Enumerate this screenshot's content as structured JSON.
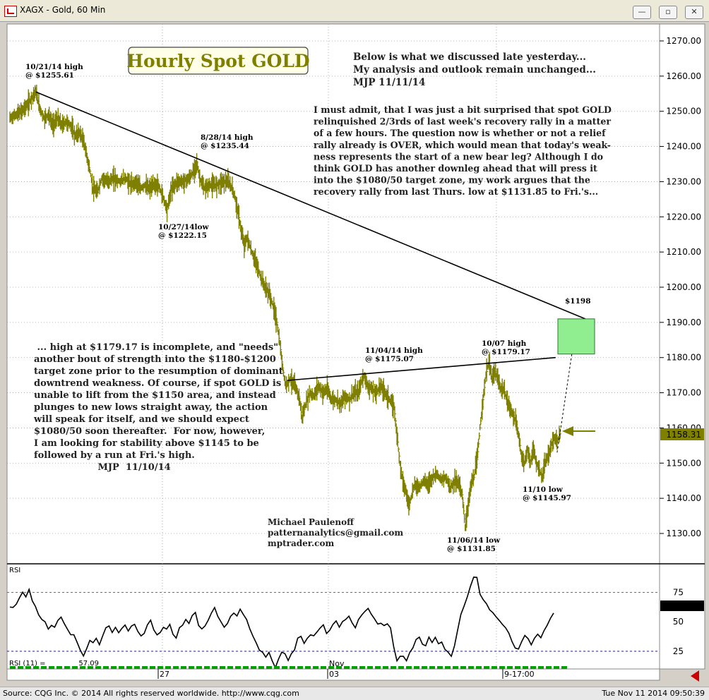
{
  "window": {
    "title": "XAGX - Gold, 60 Min",
    "minimize": "—",
    "maximize": "▫",
    "close": "✕"
  },
  "status": {
    "left": "Source: CQG Inc. © 2014 All rights reserved worldwide. http://www.cqg.com",
    "right": "Tue Nov 11 2014 09:50:39"
  },
  "colors": {
    "price_bars": "#7f7f00",
    "trendline": "#000000",
    "target_box": "#90ee90",
    "arrow": "#7f7f00",
    "rsi_line": "#000000",
    "rsi_ref": "#cc0000",
    "rsi_lower_ref": "#000080",
    "grid": "#a0a0a0"
  },
  "chart_data": [
    {
      "type": "bar",
      "title": "Hourly Spot GOLD",
      "ylim": [
        1122,
        1280
      ],
      "yticks": [
        "1270.00",
        "1260.00",
        "1250.00",
        "1240.00",
        "1230.00",
        "1220.00",
        "1210.00",
        "1200.00",
        "1190.00",
        "1180.00",
        "1170.00",
        "1160.00",
        "1150.00",
        "1140.00",
        "1130.00"
      ],
      "last_price": "1158.31",
      "close_path": [
        [
          0,
          1248
        ],
        [
          8,
          1249
        ],
        [
          16,
          1250
        ],
        [
          24,
          1252
        ],
        [
          30,
          1254
        ],
        [
          35,
          1255.61
        ],
        [
          40,
          1251
        ],
        [
          46,
          1248
        ],
        [
          52,
          1249
        ],
        [
          58,
          1246
        ],
        [
          64,
          1248
        ],
        [
          70,
          1246
        ],
        [
          76,
          1247
        ],
        [
          82,
          1246
        ],
        [
          88,
          1243
        ],
        [
          94,
          1244
        ],
        [
          100,
          1241
        ],
        [
          104,
          1237
        ],
        [
          108,
          1233
        ],
        [
          112,
          1228
        ],
        [
          118,
          1227
        ],
        [
          124,
          1231
        ],
        [
          132,
          1230
        ],
        [
          140,
          1231
        ],
        [
          148,
          1230
        ],
        [
          156,
          1231
        ],
        [
          164,
          1229
        ],
        [
          170,
          1230
        ],
        [
          176,
          1228
        ],
        [
          182,
          1229
        ],
        [
          188,
          1228
        ],
        [
          194,
          1229
        ],
        [
          200,
          1229
        ],
        [
          206,
          1226
        ],
        [
          212,
          1222.15
        ],
        [
          218,
          1228
        ],
        [
          226,
          1230
        ],
        [
          234,
          1230
        ],
        [
          242,
          1231
        ],
        [
          248,
          1233
        ],
        [
          252,
          1235.44
        ],
        [
          256,
          1231
        ],
        [
          262,
          1228
        ],
        [
          270,
          1229
        ],
        [
          278,
          1229
        ],
        [
          286,
          1230
        ],
        [
          294,
          1230
        ],
        [
          300,
          1228
        ],
        [
          304,
          1225
        ],
        [
          308,
          1221
        ],
        [
          312,
          1216
        ],
        [
          316,
          1212
        ],
        [
          320,
          1214
        ],
        [
          326,
          1210
        ],
        [
          332,
          1207
        ],
        [
          338,
          1203
        ],
        [
          344,
          1200
        ],
        [
          350,
          1198
        ],
        [
          356,
          1194
        ],
        [
          360,
          1190
        ],
        [
          364,
          1184
        ],
        [
          368,
          1177
        ],
        [
          372,
          1172
        ],
        [
          378,
          1174
        ],
        [
          384,
          1172
        ],
        [
          390,
          1169
        ],
        [
          394,
          1163
        ],
        [
          398,
          1166
        ],
        [
          404,
          1170
        ],
        [
          410,
          1169
        ],
        [
          416,
          1172
        ],
        [
          422,
          1170
        ],
        [
          428,
          1171
        ],
        [
          434,
          1168
        ],
        [
          440,
          1168
        ],
        [
          446,
          1167
        ],
        [
          452,
          1169
        ],
        [
          458,
          1168
        ],
        [
          464,
          1170
        ],
        [
          470,
          1170
        ],
        [
          474,
          1173
        ],
        [
          478,
          1175.07
        ],
        [
          482,
          1172
        ],
        [
          488,
          1171
        ],
        [
          494,
          1170
        ],
        [
          500,
          1172
        ],
        [
          506,
          1170
        ],
        [
          512,
          1168
        ],
        [
          518,
          1166
        ],
        [
          522,
          1158
        ],
        [
          526,
          1150
        ],
        [
          530,
          1145
        ],
        [
          534,
          1142
        ],
        [
          538,
          1138
        ],
        [
          542,
          1141
        ],
        [
          546,
          1144
        ],
        [
          552,
          1143
        ],
        [
          558,
          1145
        ],
        [
          564,
          1144
        ],
        [
          570,
          1146
        ],
        [
          576,
          1147
        ],
        [
          582,
          1145
        ],
        [
          588,
          1146
        ],
        [
          594,
          1143
        ],
        [
          600,
          1145
        ],
        [
          606,
          1144
        ],
        [
          610,
          1141
        ],
        [
          614,
          1131.85
        ],
        [
          618,
          1138
        ],
        [
          622,
          1144
        ],
        [
          626,
          1146
        ],
        [
          630,
          1151
        ],
        [
          634,
          1160
        ],
        [
          638,
          1168
        ],
        [
          642,
          1175
        ],
        [
          646,
          1179.17
        ],
        [
          650,
          1174
        ],
        [
          654,
          1176
        ],
        [
          658,
          1174
        ],
        [
          662,
          1171
        ],
        [
          666,
          1171
        ],
        [
          670,
          1168
        ],
        [
          676,
          1165
        ],
        [
          682,
          1162
        ],
        [
          686,
          1158
        ],
        [
          690,
          1152
        ],
        [
          694,
          1150
        ],
        [
          698,
          1154
        ],
        [
          702,
          1150
        ],
        [
          706,
          1154
        ],
        [
          710,
          1150
        ],
        [
          714,
          1148
        ],
        [
          718,
          1145.97
        ],
        [
          722,
          1150
        ],
        [
          726,
          1152
        ],
        [
          730,
          1155
        ],
        [
          734,
          1157
        ],
        [
          738,
          1156
        ],
        [
          742,
          1158.31
        ]
      ],
      "x_axis": {
        "labels": [
          "27",
          "03",
          "Nov",
          "9-17:00"
        ]
      },
      "lines": [
        {
          "name": "downtrend",
          "from": [
            35,
            1255.5
          ],
          "to": [
            776,
            1191
          ]
        },
        {
          "name": "uptrend",
          "from": [
            374,
            1173.5
          ],
          "to": [
            736,
            1180
          ]
        },
        {
          "name": "projection",
          "from": [
            738,
            1153
          ],
          "to": [
            760,
            1184
          ],
          "dashed": true
        }
      ],
      "target_zone": {
        "y": [
          1181,
          1191
        ]
      },
      "annotations": [
        {
          "name": "oct21-high",
          "lines": [
            "10/21/14 high",
            "@ $1255.61"
          ]
        },
        {
          "name": "aug28-high",
          "lines": [
            "8/28/14 high",
            "@ $1235.44"
          ]
        },
        {
          "name": "oct27-low",
          "lines": [
            "10/27/14low",
            "@ $1222.15"
          ]
        },
        {
          "name": "nov04-high",
          "lines": [
            "11/04/14 high",
            "@ $1175.07"
          ]
        },
        {
          "name": "oct07-high",
          "lines": [
            "10/07 high",
            "@ $1179.17"
          ]
        },
        {
          "name": "target-label",
          "lines": [
            "$1198"
          ]
        },
        {
          "name": "nov10-low",
          "lines": [
            "11/10 low",
            "@ $1145.97"
          ]
        },
        {
          "name": "nov06-low",
          "lines": [
            "11/06/14 low",
            "@ $1131.85"
          ]
        }
      ],
      "notes": {
        "top": [
          "Below is what we discussed late yesterday...",
          "My analysis and outlook remain unchanged...",
          "MJP  11/11/14"
        ],
        "right": [
          "I must admit, that I was just a bit surprised that spot GOLD",
          "relinquished 2/3rds of last week's recovery rally in a matter",
          "of a few hours. The question now is whether or not a relief",
          "rally already is OVER, which would mean that today's weak-",
          "ness represents the start of a new bear leg? Although I do",
          "think GOLD has another downleg ahead that will press it",
          "into the $1080/50 target zone,  my work argues that the",
          "recovery rally from last Thurs. low at $1131.85 to Fri.'s..."
        ],
        "left": [
          " ... high at $1179.17 is incomplete, and \"needs\"",
          "another bout of strength into the $1180-$1200",
          "target zone prior to the resumption of dominant",
          "downtrend weakness. Of course, if spot GOLD is",
          "unable to lift from the $1150 area, and instead",
          "plunges to new lows straight away, the action",
          "will speak for itself, and we should expect",
          "$1080/50 soon thereafter.  For now, however,",
          "I am looking for stability above $1145 to be",
          "followed by a run at Fri.'s high.",
          "                    MJP  11/10/14"
        ],
        "author": [
          "Michael Paulenoff",
          "patternanalytics@gmail.com",
          "mptrader.com"
        ]
      }
    },
    {
      "type": "line",
      "title": "RSI",
      "label": "RSI (11) =",
      "value": "57.09",
      "ylim": [
        10,
        95
      ],
      "yticks": [
        "75",
        "50",
        "25"
      ],
      "ref_lines": [
        75,
        25
      ],
      "series": [
        {
          "values": [
            63,
            62,
            66,
            70,
            74,
            72,
            77,
            68,
            63,
            55,
            52,
            50,
            44,
            47,
            45,
            50,
            53,
            49,
            43,
            40,
            38,
            33,
            26,
            20,
            28,
            34,
            32,
            36,
            30,
            38,
            44,
            47,
            42,
            45,
            40,
            44,
            48,
            42,
            46,
            49,
            43,
            38,
            40,
            47,
            51,
            44,
            38,
            41,
            46,
            45,
            48,
            40,
            36,
            44,
            47,
            51,
            49,
            55,
            58,
            48,
            43,
            46,
            51,
            57,
            61,
            55,
            50,
            45,
            48,
            54,
            58,
            56,
            60,
            57,
            51,
            45,
            37,
            32,
            27,
            24,
            20,
            25,
            16,
            12,
            18,
            25,
            22,
            18,
            22,
            27,
            35,
            38,
            32,
            36,
            40,
            37,
            42,
            45,
            48,
            40,
            42,
            47,
            50,
            45,
            49,
            52,
            55,
            50,
            46,
            52,
            55,
            58,
            62,
            57,
            53,
            49,
            50,
            46,
            48,
            45,
            28,
            18,
            22,
            20,
            16,
            25,
            29,
            35,
            38,
            32,
            30,
            37,
            33,
            36,
            31,
            34,
            27,
            23,
            20,
            30,
            42,
            55,
            64,
            70,
            79,
            88,
            88,
            74,
            69,
            65,
            61,
            58,
            55,
            52,
            49,
            45,
            40,
            33,
            27,
            28,
            33,
            38,
            35,
            31,
            36,
            40,
            37,
            42,
            46,
            52,
            57
          ]
        }
      ]
    }
  ]
}
